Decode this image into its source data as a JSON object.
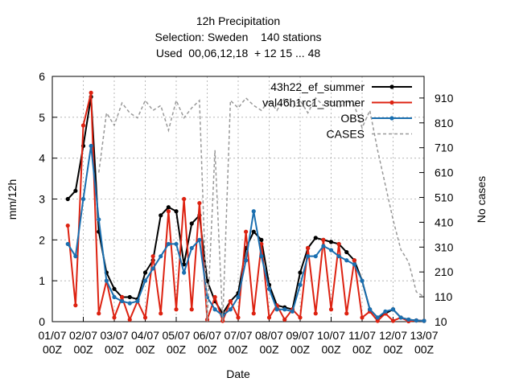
{
  "chart_data": {
    "type": "line",
    "title": "12h Precipitation",
    "subtitle": [
      "Selection: Sweden    140 stations",
      "Used  00,06,12,18  + 12 15 ... 48"
    ],
    "xlabel": "Date",
    "ylabel": "mm/12h",
    "y2label": "No cases",
    "x": [
      12,
      18,
      24,
      30,
      36,
      42,
      48,
      54,
      60,
      66,
      72,
      78,
      84,
      90,
      96,
      102,
      108,
      114,
      120,
      126,
      132,
      138,
      144,
      150,
      156,
      162,
      168,
      174,
      180,
      186,
      192,
      198,
      204,
      210,
      216,
      222,
      228,
      234,
      240,
      246,
      252,
      258,
      264,
      270,
      276,
      282,
      288
    ],
    "xlim": [
      0,
      288
    ],
    "xticks": [
      {
        "value": 0,
        "label": "01/07 00Z"
      },
      {
        "value": 24,
        "label": "02/07 00Z"
      },
      {
        "value": 48,
        "label": "03/07 00Z"
      },
      {
        "value": 72,
        "label": "04/07 00Z"
      },
      {
        "value": 96,
        "label": "05/07 00Z"
      },
      {
        "value": 120,
        "label": "06/07 00Z"
      },
      {
        "value": 144,
        "label": "07/07 00Z"
      },
      {
        "value": 168,
        "label": "08/07 00Z"
      },
      {
        "value": 192,
        "label": "09/07 00Z"
      },
      {
        "value": 216,
        "label": "10/07 00Z"
      },
      {
        "value": 240,
        "label": "11/07 00Z"
      },
      {
        "value": 264,
        "label": "12/07 00Z"
      },
      {
        "value": 288,
        "label": "13/07 00Z"
      }
    ],
    "ylim": [
      0,
      6
    ],
    "yticks": [
      0,
      1,
      2,
      3,
      4,
      5,
      6
    ],
    "y2lim": [
      10,
      997
    ],
    "y2ticks": [
      10,
      110,
      210,
      310,
      410,
      510,
      610,
      710,
      810,
      910
    ],
    "grid": true,
    "legend": "top-right",
    "series": [
      {
        "name": "43h22_ef_summer",
        "color": "#000000",
        "marker": true,
        "values": [
          3.0,
          3.2,
          4.3,
          5.5,
          2.2,
          1.2,
          0.8,
          0.6,
          0.6,
          0.55,
          1.2,
          1.5,
          2.6,
          2.8,
          2.7,
          1.4,
          2.4,
          2.6,
          1.0,
          0.5,
          0.2,
          0.5,
          0.7,
          1.8,
          2.2,
          2.0,
          0.9,
          0.4,
          0.35,
          0.3,
          1.2,
          1.8,
          2.05,
          2.0,
          1.95,
          1.9,
          1.7,
          1.5,
          1.0,
          0.3,
          0.1,
          0.2,
          0.3,
          0.1,
          0.05,
          0.03,
          0.02
        ]
      },
      {
        "name": "val46h1rc1_summer",
        "color": "#dd2211",
        "marker": true,
        "values": [
          2.35,
          0.4,
          4.8,
          5.6,
          0.2,
          1.0,
          0.1,
          0.6,
          0.05,
          0.5,
          0.1,
          1.6,
          0.2,
          2.7,
          0.3,
          3.0,
          0.3,
          2.9,
          0.05,
          0.6,
          0.02,
          0.5,
          0.1,
          2.2,
          0.2,
          1.9,
          0.1,
          0.4,
          0.05,
          0.3,
          0.1,
          1.8,
          0.2,
          2.0,
          0.3,
          1.9,
          0.2,
          1.5,
          0.1,
          0.25,
          0.02,
          0.2,
          0.02,
          0.1,
          0.01,
          0.03,
          0.02
        ]
      },
      {
        "name": "OBS",
        "color": "#1a6fb0",
        "marker": true,
        "values": [
          1.9,
          1.6,
          3.0,
          4.3,
          2.5,
          1.0,
          0.6,
          0.5,
          0.45,
          0.5,
          1.0,
          1.3,
          1.6,
          1.9,
          1.9,
          1.2,
          1.8,
          2.0,
          0.6,
          0.3,
          0.15,
          0.3,
          0.6,
          1.5,
          2.7,
          1.6,
          0.8,
          0.3,
          0.3,
          0.25,
          0.9,
          1.6,
          1.6,
          1.85,
          1.75,
          1.6,
          1.5,
          1.4,
          1.0,
          0.3,
          0.1,
          0.25,
          0.3,
          0.1,
          0.05,
          0.03,
          0.02
        ]
      },
      {
        "name": "CASES",
        "color": "#999999",
        "axis": "y2",
        "dashed": true,
        "marker": false,
        "values": [
          null,
          null,
          null,
          null,
          610,
          850,
          800,
          890,
          850,
          830,
          900,
          860,
          880,
          780,
          900,
          830,
          870,
          900,
          10,
          700,
          10,
          900,
          870,
          910,
          880,
          860,
          900,
          860,
          910,
          870,
          900,
          850,
          910,
          880,
          900,
          870,
          900,
          880,
          790,
          860,
          700,
          560,
          420,
          300,
          250,
          130,
          110
        ]
      }
    ]
  }
}
